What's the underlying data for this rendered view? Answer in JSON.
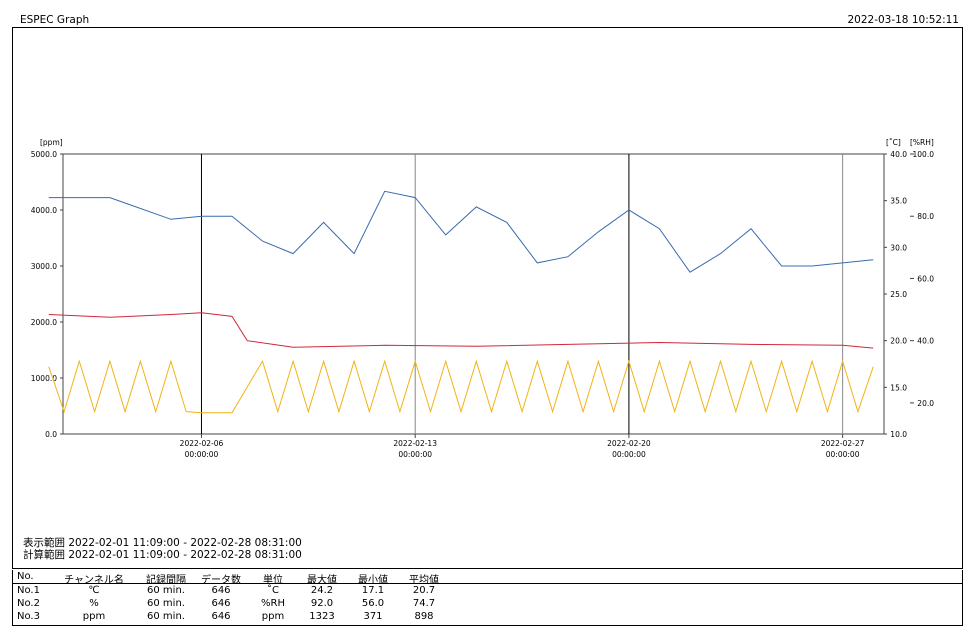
{
  "header": {
    "title": "ESPEC Graph",
    "timestamp": "2022-03-18 10:52:11"
  },
  "ranges": {
    "display": "表示範囲 2022-02-01 11:09:00 - 2022-02-28 08:31:00",
    "calc": "計算範囲 2022-02-01 11:09:00 - 2022-02-28 08:31:00"
  },
  "stats": {
    "headers": [
      "No.",
      "チャンネル名",
      "記録間隔",
      "データ数",
      "単位",
      "最大値",
      "最小値",
      "平均値"
    ],
    "rows": [
      [
        "No.1",
        "℃",
        "60 min.",
        "646",
        "˚C",
        "24.2",
        "17.1",
        "20.7"
      ],
      [
        "No.2",
        "%",
        "60 min.",
        "646",
        "%RH",
        "92.0",
        "56.0",
        "74.7"
      ],
      [
        "No.3",
        "ppm",
        "60 min.",
        "646",
        "ppm",
        "1323",
        "371",
        "898"
      ]
    ]
  },
  "chart_data": {
    "type": "line",
    "x_range": [
      "2022-02-01 11:09:00",
      "2022-02-28 08:31:00"
    ],
    "x_ticks": [
      {
        "date": "2022-02-06",
        "time": "00:00:00"
      },
      {
        "date": "2022-02-13",
        "time": "00:00:00"
      },
      {
        "date": "2022-02-20",
        "time": "00:00:00"
      },
      {
        "date": "2022-02-27",
        "time": "00:00:00"
      }
    ],
    "axes": {
      "left": {
        "unit": "[ppm]",
        "ylim": [
          0,
          5000
        ],
        "ticks": [
          "0.0",
          "1000.0",
          "2000.0",
          "3000.0",
          "4000.0",
          "5000.0"
        ]
      },
      "right1": {
        "unit": "[˚C]",
        "ylim": [
          10,
          40
        ],
        "ticks": [
          "10.0",
          "15.0",
          "20.0",
          "25.0",
          "30.0",
          "35.0",
          "40.0"
        ]
      },
      "right2": {
        "unit": "[%RH]",
        "ylim": [
          10,
          100
        ],
        "ticks": [
          "20.0",
          "40.0",
          "60.0",
          "80.0",
          "100.0"
        ]
      }
    },
    "series": [
      {
        "channel": "No.1",
        "axis": "right1",
        "color": "#d0273a",
        "points": [
          [
            "2022-02-01",
            22.8
          ],
          [
            "2022-02-03",
            22.5
          ],
          [
            "2022-02-05",
            22.8
          ],
          [
            "2022-02-06",
            23.0
          ],
          [
            "2022-02-07",
            22.6
          ],
          [
            "2022-02-07 12:00",
            20.0
          ],
          [
            "2022-02-09",
            19.3
          ],
          [
            "2022-02-12",
            19.5
          ],
          [
            "2022-02-15",
            19.4
          ],
          [
            "2022-02-18",
            19.6
          ],
          [
            "2022-02-21",
            19.8
          ],
          [
            "2022-02-24",
            19.6
          ],
          [
            "2022-02-27",
            19.5
          ],
          [
            "2022-02-28",
            19.2
          ]
        ]
      },
      {
        "channel": "No.2",
        "axis": "right2",
        "color": "#3a6bb0",
        "points": [
          [
            "2022-02-01",
            86
          ],
          [
            "2022-02-03",
            86
          ],
          [
            "2022-02-05",
            79
          ],
          [
            "2022-02-06",
            80
          ],
          [
            "2022-02-07",
            80
          ],
          [
            "2022-02-08",
            72
          ],
          [
            "2022-02-09",
            68
          ],
          [
            "2022-02-10",
            78
          ],
          [
            "2022-02-11",
            68
          ],
          [
            "2022-02-12",
            88
          ],
          [
            "2022-02-13",
            86
          ],
          [
            "2022-02-14",
            74
          ],
          [
            "2022-02-15",
            83
          ],
          [
            "2022-02-16",
            78
          ],
          [
            "2022-02-17",
            65
          ],
          [
            "2022-02-18",
            67
          ],
          [
            "2022-02-19",
            75
          ],
          [
            "2022-02-20",
            82
          ],
          [
            "2022-02-21",
            76
          ],
          [
            "2022-02-22",
            62
          ],
          [
            "2022-02-23",
            68
          ],
          [
            "2022-02-24",
            76
          ],
          [
            "2022-02-25",
            64
          ],
          [
            "2022-02-26",
            64
          ],
          [
            "2022-02-27",
            65
          ],
          [
            "2022-02-28",
            66
          ]
        ]
      },
      {
        "channel": "No.3",
        "axis": "left",
        "color": "#f2b315",
        "points": [
          [
            "2022-02-01",
            1200
          ],
          [
            "2022-02-01 12:00",
            400
          ],
          [
            "2022-02-02",
            1300
          ],
          [
            "2022-02-02 12:00",
            400
          ],
          [
            "2022-02-03",
            1300
          ],
          [
            "2022-02-03 12:00",
            400
          ],
          [
            "2022-02-04",
            1300
          ],
          [
            "2022-02-04 12:00",
            400
          ],
          [
            "2022-02-05",
            1300
          ],
          [
            "2022-02-05 12:00",
            400
          ],
          [
            "2022-02-06",
            380
          ],
          [
            "2022-02-07",
            380
          ],
          [
            "2022-02-08",
            1300
          ],
          [
            "2022-02-08 12:00",
            400
          ],
          [
            "2022-02-09",
            1300
          ],
          [
            "2022-02-09 12:00",
            400
          ],
          [
            "2022-02-10",
            1300
          ],
          [
            "2022-02-10 12:00",
            400
          ],
          [
            "2022-02-11",
            1300
          ],
          [
            "2022-02-11 12:00",
            400
          ],
          [
            "2022-02-12",
            1300
          ],
          [
            "2022-02-12 12:00",
            400
          ],
          [
            "2022-02-13",
            1300
          ],
          [
            "2022-02-13 12:00",
            400
          ],
          [
            "2022-02-14",
            1300
          ],
          [
            "2022-02-14 12:00",
            400
          ],
          [
            "2022-02-15",
            1300
          ],
          [
            "2022-02-15 12:00",
            400
          ],
          [
            "2022-02-16",
            1300
          ],
          [
            "2022-02-16 12:00",
            400
          ],
          [
            "2022-02-17",
            1300
          ],
          [
            "2022-02-17 12:00",
            400
          ],
          [
            "2022-02-18",
            1300
          ],
          [
            "2022-02-18 12:00",
            400
          ],
          [
            "2022-02-19",
            1300
          ],
          [
            "2022-02-19 12:00",
            400
          ],
          [
            "2022-02-20",
            1300
          ],
          [
            "2022-02-20 12:00",
            400
          ],
          [
            "2022-02-21",
            1300
          ],
          [
            "2022-02-21 12:00",
            400
          ],
          [
            "2022-02-22",
            1300
          ],
          [
            "2022-02-22 12:00",
            400
          ],
          [
            "2022-02-23",
            1300
          ],
          [
            "2022-02-23 12:00",
            400
          ],
          [
            "2022-02-24",
            1300
          ],
          [
            "2022-02-24 12:00",
            400
          ],
          [
            "2022-02-25",
            1300
          ],
          [
            "2022-02-25 12:00",
            400
          ],
          [
            "2022-02-26",
            1300
          ],
          [
            "2022-02-26 12:00",
            400
          ],
          [
            "2022-02-27",
            1300
          ],
          [
            "2022-02-27 12:00",
            400
          ],
          [
            "2022-02-28",
            1200
          ]
        ]
      }
    ],
    "grid": "vertical lines at x ticks"
  }
}
